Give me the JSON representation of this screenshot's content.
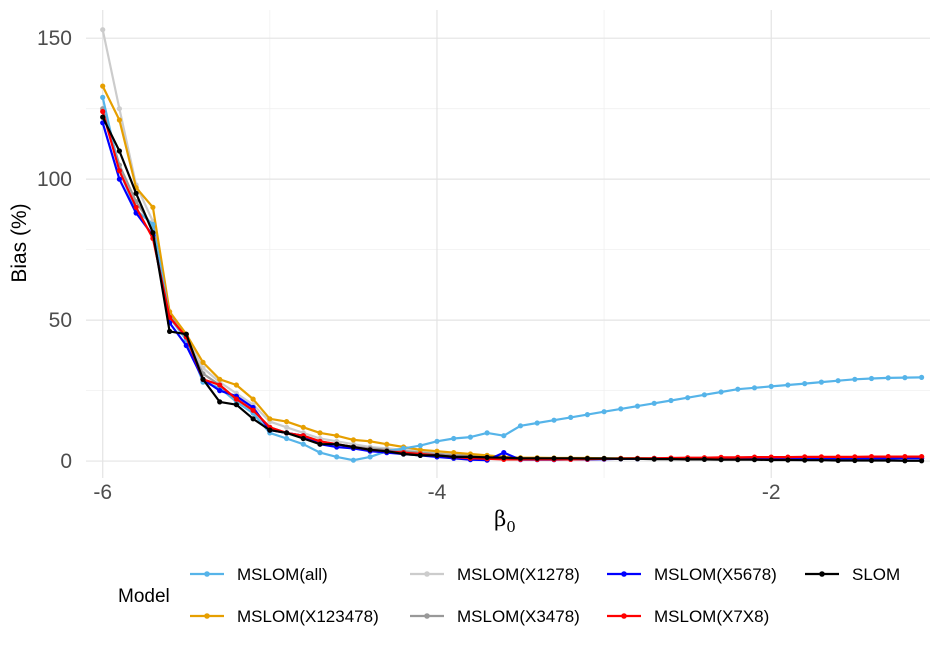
{
  "chart_data": {
    "type": "line",
    "title": "",
    "xlabel": "β",
    "xlabel_subscript": "0",
    "ylabel": "Bias (%)",
    "xlim": [
      -6.1,
      -1.05
    ],
    "ylim": [
      -6,
      160
    ],
    "x_ticks": [
      -6,
      -4,
      -2
    ],
    "x_tick_labels": [
      "-6",
      "-4",
      "-2"
    ],
    "y_ticks": [
      0,
      50,
      100,
      150
    ],
    "y_tick_labels": [
      "0",
      "50",
      "100",
      "150"
    ],
    "grid": true,
    "legend_position": "bottom",
    "legend_title": "Model",
    "x": [
      -6.0,
      -5.9,
      -5.8,
      -5.7,
      -5.6,
      -5.5,
      -5.4,
      -5.3,
      -5.2,
      -5.1,
      -5.0,
      -4.9,
      -4.8,
      -4.7,
      -4.6,
      -4.5,
      -4.4,
      -4.3,
      -4.2,
      -4.1,
      -4.0,
      -3.9,
      -3.8,
      -3.7,
      -3.6,
      -3.5,
      -3.4,
      -3.3,
      -3.2,
      -3.1,
      -3.0,
      -2.9,
      -2.8,
      -2.7,
      -2.6,
      -2.5,
      -2.4,
      -2.3,
      -2.2,
      -2.1,
      -2.0,
      -1.9,
      -1.8,
      -1.7,
      -1.6,
      -1.5,
      -1.4,
      -1.3,
      -1.2,
      -1.1
    ],
    "series": [
      {
        "name": "MSLOM(all)",
        "color": "#56b4e9",
        "values": [
          129,
          103,
          89,
          84,
          51,
          43,
          28,
          26,
          21,
          17,
          10,
          8,
          6,
          3,
          1.5,
          0.3,
          1.5,
          3.5,
          4.5,
          5.5,
          7,
          8,
          8.5,
          10,
          9,
          12.5,
          13.5,
          14.5,
          15.5,
          16.5,
          17.5,
          18.5,
          19.5,
          20.5,
          21.5,
          22.5,
          23.5,
          24.5,
          25.5,
          26,
          26.5,
          27,
          27.5,
          28,
          28.5,
          29,
          29.3,
          29.5,
          29.6,
          29.7
        ]
      },
      {
        "name": "MSLOM(X123478)",
        "color": "#e69f00",
        "values": [
          133,
          121,
          97,
          90,
          53,
          45,
          35,
          29,
          27,
          22,
          15,
          14,
          12,
          10,
          9,
          7.5,
          7,
          6,
          5,
          4,
          3.5,
          3,
          2.5,
          2,
          1.5,
          1.2,
          1.2,
          1.1,
          1.1,
          1.1,
          1,
          1,
          1,
          0.9,
          0.9,
          0.9,
          0.9,
          0.9,
          0.9,
          1,
          1,
          1.1,
          1.1,
          1.2,
          1.2,
          1.3,
          1.3,
          1.4,
          1.4,
          1.5
        ]
      },
      {
        "name": "MSLOM(X1278)",
        "color": "#cccccc",
        "values": [
          153,
          125,
          98,
          85,
          53,
          44,
          33,
          28,
          24,
          20,
          14,
          12,
          10,
          8,
          7,
          6,
          5,
          4.5,
          4,
          3.5,
          3,
          2.5,
          2,
          1.5,
          1.2,
          1,
          1,
          1,
          1,
          1,
          1,
          1,
          1,
          1,
          1,
          1,
          1,
          1,
          1,
          1,
          1,
          1,
          1,
          1,
          1,
          1,
          1,
          1,
          1,
          1
        ]
      },
      {
        "name": "MSLOM(X3478)",
        "color": "#999999",
        "values": [
          125,
          105,
          92,
          83,
          52,
          43,
          31,
          27,
          22,
          18,
          12,
          10,
          9,
          7,
          6,
          5,
          4.5,
          4,
          3.5,
          3,
          2.5,
          2,
          1.8,
          1.5,
          1.2,
          1,
          1,
          1,
          1,
          1,
          1,
          1,
          1,
          1,
          1,
          1,
          1,
          1,
          1,
          1,
          1,
          1,
          1,
          1,
          1,
          1,
          1,
          1,
          1,
          1
        ]
      },
      {
        "name": "MSLOM(X5678)",
        "color": "#0000ff",
        "values": [
          120,
          100,
          88,
          80,
          49,
          41,
          29,
          25,
          23,
          19,
          11,
          10,
          9,
          6,
          5,
          4.5,
          3.5,
          3,
          2.5,
          2,
          1.5,
          1,
          0.5,
          0.3,
          3,
          0.5,
          0.5,
          0.5,
          0.6,
          0.6,
          0.7,
          0.8,
          0.8,
          0.9,
          1,
          1,
          1,
          1,
          1,
          1,
          1,
          1,
          1,
          1,
          1,
          1,
          1,
          1,
          1,
          1
        ]
      },
      {
        "name": "MSLOM(X7X8)",
        "color": "#ff0000",
        "values": [
          124,
          103,
          90,
          79,
          51,
          44,
          29,
          27,
          22,
          18,
          12,
          10,
          9,
          7,
          6,
          5,
          4,
          3.5,
          3,
          2.5,
          2,
          1.5,
          1,
          0.8,
          0.6,
          0.6,
          0.6,
          0.6,
          0.6,
          0.7,
          0.8,
          0.9,
          1,
          1,
          1.1,
          1.2,
          1.2,
          1.3,
          1.3,
          1.4,
          1.4,
          1.4,
          1.5,
          1.5,
          1.5,
          1.5,
          1.6,
          1.6,
          1.6,
          1.6
        ]
      },
      {
        "name": "SLOM",
        "color": "#000000",
        "values": [
          122,
          110,
          95,
          81,
          46,
          45,
          29,
          21,
          20,
          15,
          11,
          10,
          8,
          6,
          6,
          5,
          4,
          3.5,
          2.5,
          2,
          2,
          1.5,
          1.5,
          1.3,
          1.2,
          1,
          1,
          1,
          1,
          0.9,
          0.9,
          0.8,
          0.8,
          0.7,
          0.7,
          0.6,
          0.6,
          0.5,
          0.5,
          0.5,
          0.4,
          0.4,
          0.3,
          0.3,
          0.2,
          0.2,
          0.2,
          0.2,
          0.1,
          0.1
        ]
      }
    ]
  }
}
